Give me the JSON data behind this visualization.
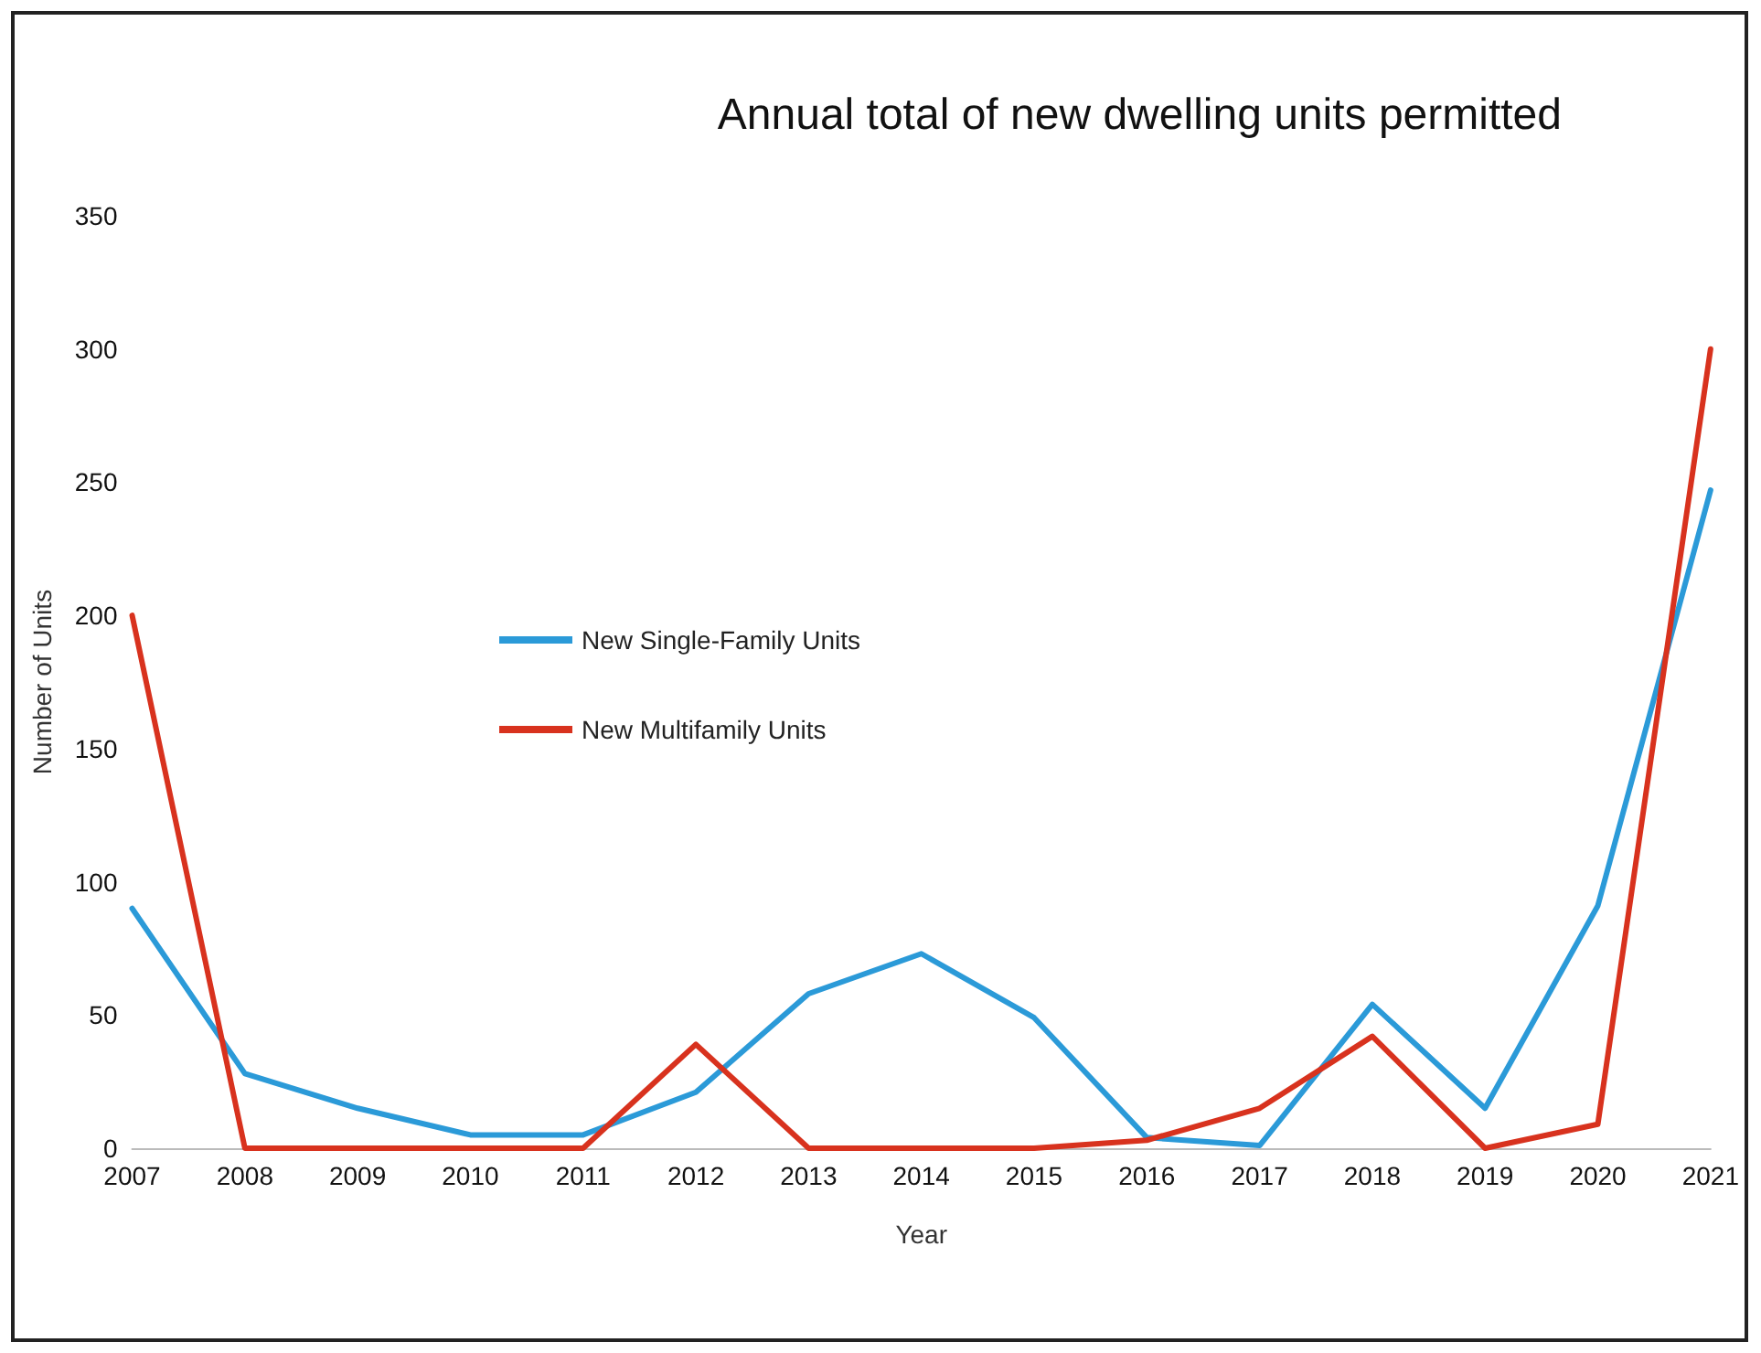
{
  "chart_data": {
    "type": "line",
    "title": "Annual total of new dwelling units permitted",
    "xlabel": "Year",
    "ylabel": "Number of Units",
    "categories": [
      "2007",
      "2008",
      "2009",
      "2010",
      "2011",
      "2012",
      "2013",
      "2014",
      "2015",
      "2016",
      "2017",
      "2018",
      "2019",
      "2020",
      "2021"
    ],
    "series": [
      {
        "name": "New Single-Family Units",
        "color": "#2b9ad8",
        "values": [
          90,
          28,
          15,
          5,
          5,
          21,
          58,
          73,
          49,
          4,
          1,
          54,
          15,
          91,
          247
        ]
      },
      {
        "name": "New Multifamily Units",
        "color": "#d8321e",
        "values": [
          200,
          0,
          0,
          0,
          0,
          39,
          0,
          0,
          0,
          3,
          15,
          42,
          0,
          9,
          300
        ]
      }
    ],
    "ylim": [
      0,
      350
    ],
    "yticks": [
      0,
      50,
      100,
      150,
      200,
      250,
      300,
      350
    ],
    "grid": false,
    "legend": "center",
    "marker": "none",
    "line_style": "solid"
  }
}
